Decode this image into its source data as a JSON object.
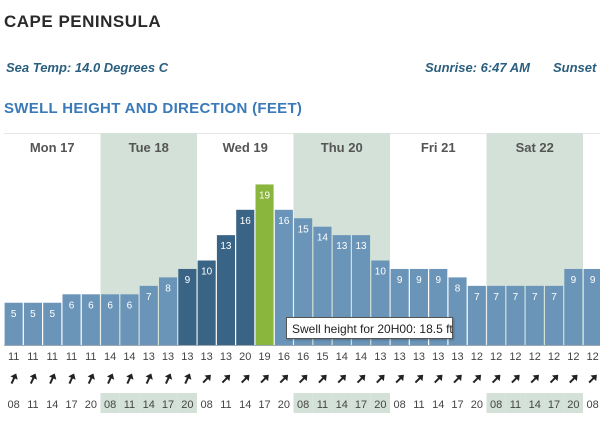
{
  "title": "CAPE PENINSULA",
  "sea_temp": "Sea Temp: 14.0 Degrees C",
  "sunrise": "Sunrise: 6:47 AM",
  "sunset": "Sunset",
  "section_heading": "SWELL HEIGHT AND DIRECTION (FEET)",
  "tooltip": "Swell height for 20H00: 18.5 ft",
  "colors": {
    "bar": "#6b95b8",
    "bar_dark": "#3a6485",
    "bar_highlight": "#8bb63d",
    "shade": "#d3e1d8",
    "label": "#ffffff"
  },
  "chart_data": {
    "type": "bar",
    "title": "SWELL HEIGHT AND DIRECTION (FEET)",
    "days": [
      "Mon 17",
      "Tue 18",
      "Wed 19",
      "Thu 20",
      "Fri 21",
      "Sat 22"
    ],
    "x": [
      "08",
      "11",
      "14",
      "17",
      "20",
      "08",
      "11",
      "14",
      "17",
      "20",
      "08",
      "11",
      "14",
      "17",
      "20",
      "08",
      "11",
      "14",
      "17",
      "20",
      "08",
      "11",
      "14",
      "17",
      "20",
      "08",
      "11",
      "14",
      "17",
      "20",
      "08"
    ],
    "values": [
      5,
      5,
      5,
      6,
      6,
      6,
      6,
      7,
      8,
      9,
      10,
      13,
      16,
      19,
      16,
      15,
      14,
      13,
      13,
      10,
      9,
      9,
      9,
      8,
      7,
      7,
      7,
      7,
      7,
      9,
      9
    ],
    "period": [
      "11",
      "11",
      "11",
      "11",
      "11",
      "14",
      "14",
      "13",
      "13",
      "13",
      "13",
      "13",
      "20",
      "19",
      "16",
      "16",
      "15",
      "14",
      "14",
      "13",
      "13",
      "13",
      "13",
      "13",
      "12",
      "12",
      "12",
      "12",
      "12",
      "12",
      "12"
    ],
    "highlight_index": 13,
    "dark_range": [
      9,
      12
    ],
    "ylim": [
      0,
      20
    ]
  }
}
